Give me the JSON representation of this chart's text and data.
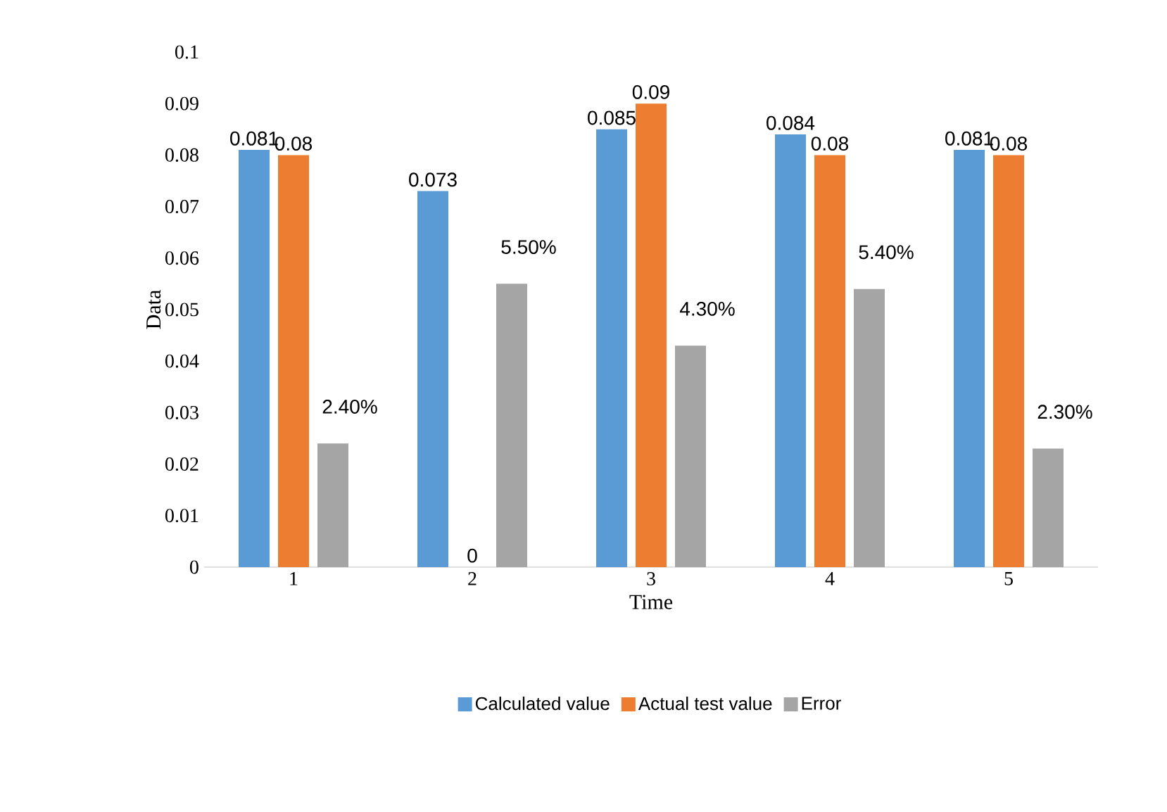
{
  "chart_data": {
    "type": "bar",
    "xlabel": "Time",
    "ylabel": "Data",
    "categories": [
      "1",
      "2",
      "3",
      "4",
      "5"
    ],
    "series": [
      {
        "name": "Calculated value",
        "color": "#5b9bd5",
        "values": [
          0.081,
          0.073,
          0.085,
          0.084,
          0.081
        ],
        "value_labels": [
          "0.081",
          "0.073",
          "0.085",
          "0.084",
          "0.081"
        ]
      },
      {
        "name": "Actual test value",
        "color": "#ed7d31",
        "values": [
          0.08,
          0,
          0.09,
          0.08,
          0.08
        ],
        "value_labels": [
          "0.08",
          "0",
          "0.09",
          "0.08",
          "0.08"
        ]
      },
      {
        "name": "Error",
        "color": "#a5a5a5",
        "values": [
          0.024,
          0.055,
          0.043,
          0.054,
          0.023
        ],
        "value_labels": [
          "2.40%",
          "5.50%",
          "4.30%",
          "5.40%",
          "2.30%"
        ]
      }
    ],
    "ylim": [
      0,
      0.1
    ],
    "yticks": [
      0,
      0.01,
      0.02,
      0.03,
      0.04,
      0.05,
      0.06,
      0.07,
      0.08,
      0.09,
      0.1
    ],
    "grid": false,
    "legend": "bottom"
  }
}
